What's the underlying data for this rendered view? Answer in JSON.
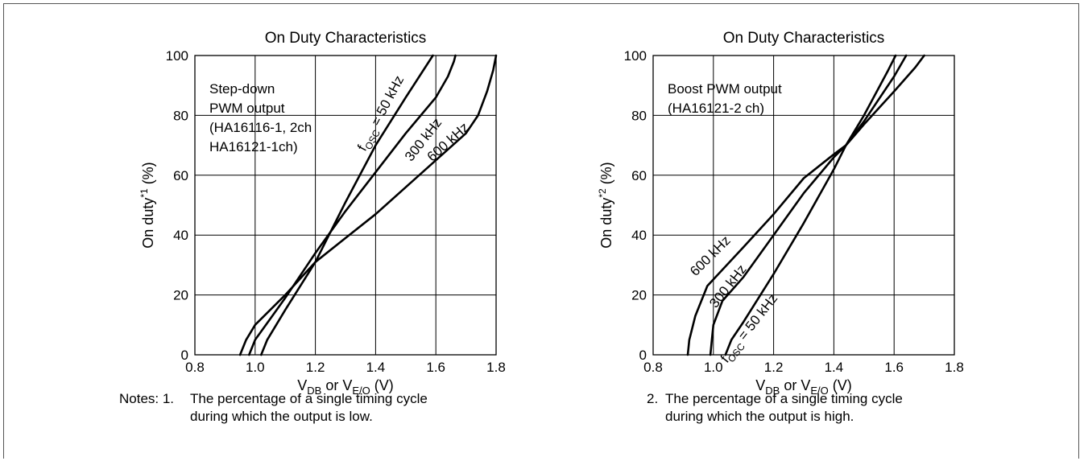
{
  "chart_data": [
    {
      "type": "line",
      "title": "On Duty Characteristics",
      "xlabel": {
        "main": "V",
        "sub1": "DB",
        "mid": " or V",
        "sub2": "E/O",
        "unit": " (V)"
      },
      "ylabel": {
        "main": "On duty",
        "sup": "*1",
        "unit": " (%)"
      },
      "xlim": [
        0.8,
        1.8
      ],
      "ylim": [
        0,
        100
      ],
      "xticks": [
        "0.8",
        "1.0",
        "1.2",
        "1.4",
        "1.6",
        "1.8"
      ],
      "yticks": [
        "0",
        "20",
        "40",
        "60",
        "80",
        "100"
      ],
      "grid": true,
      "annotation": [
        "Step-down",
        "PWM output",
        "(HA16116-1, 2ch",
        "HA16121-1ch)"
      ],
      "series": [
        {
          "name": "f_OSC = 50 kHz",
          "x": [
            1.02,
            1.04,
            1.1,
            1.2,
            1.3,
            1.4,
            1.5,
            1.59
          ],
          "y": [
            0,
            5,
            15,
            31,
            51,
            70,
            86,
            100
          ]
        },
        {
          "name": "300 kHz",
          "x": [
            0.98,
            1.0,
            1.05,
            1.1,
            1.2,
            1.3,
            1.4,
            1.5,
            1.6,
            1.64,
            1.66,
            1.665
          ],
          "y": [
            0,
            5,
            12,
            19,
            34,
            48,
            61,
            74,
            86,
            93,
            98,
            100
          ]
        },
        {
          "name": "600 kHz",
          "x": [
            0.95,
            0.97,
            1.0,
            1.1,
            1.2,
            1.3,
            1.4,
            1.5,
            1.6,
            1.7,
            1.74,
            1.77,
            1.79,
            1.8
          ],
          "y": [
            0,
            5,
            10,
            20,
            31,
            39,
            47,
            56,
            65,
            74,
            80,
            88,
            95,
            100
          ]
        }
      ],
      "curve_labels": [
        {
          "text": "f",
          "sub": "OSC",
          "tail": " = 50 kHz",
          "x": 1.43,
          "y": 80,
          "angle": -62
        },
        {
          "text": "300 kHz",
          "x": 1.57,
          "y": 71,
          "angle": -52
        },
        {
          "text": "600 kHz",
          "x": 1.65,
          "y": 70,
          "angle": -42
        }
      ]
    },
    {
      "type": "line",
      "title": "On Duty Characteristics",
      "xlabel": {
        "main": "V",
        "sub1": "DB",
        "mid": " or V",
        "sub2": "E/O",
        "unit": " (V)"
      },
      "ylabel": {
        "main": "On duty",
        "sup": "*2",
        "unit": " (%)"
      },
      "xlim": [
        0.8,
        1.8
      ],
      "ylim": [
        0,
        100
      ],
      "xticks": [
        "0.8",
        "1.0",
        "1.2",
        "1.4",
        "1.6",
        "1.8"
      ],
      "yticks": [
        "0",
        "20",
        "40",
        "60",
        "80",
        "100"
      ],
      "grid": true,
      "annotation": [
        "Boost PWM output",
        "(HA16121-2 ch)"
      ],
      "series": [
        {
          "name": "f_OSC = 50 kHz",
          "x": [
            1.04,
            1.06,
            1.1,
            1.2,
            1.3,
            1.4,
            1.44,
            1.5,
            1.6,
            1.67,
            1.7
          ],
          "y": [
            0,
            5,
            11,
            27,
            44,
            62,
            70,
            77,
            88,
            96,
            100
          ]
        },
        {
          "name": "300 kHz",
          "x": [
            0.99,
            0.995,
            1.0,
            1.03,
            1.1,
            1.2,
            1.3,
            1.4,
            1.44,
            1.5,
            1.6,
            1.64
          ],
          "y": [
            0,
            5,
            10,
            18,
            26,
            40,
            54,
            66,
            70,
            78,
            93,
            100
          ]
        },
        {
          "name": "600 kHz",
          "x": [
            0.915,
            0.92,
            0.94,
            0.98,
            1.1,
            1.2,
            1.3,
            1.4,
            1.44,
            1.5,
            1.58,
            1.605
          ],
          "y": [
            0,
            5,
            13,
            23,
            36,
            47,
            59,
            67,
            70,
            80,
            95,
            100
          ]
        }
      ],
      "curve_labels": [
        {
          "text": "600 kHz",
          "x": 1.0,
          "y": 32,
          "angle": -45
        },
        {
          "text": "300 kHz",
          "x": 1.06,
          "y": 22,
          "angle": -52
        },
        {
          "text": "f",
          "sub": "OSC",
          "tail": " = 50 kHz",
          "x": 1.13,
          "y": 8,
          "angle": -52
        }
      ]
    }
  ],
  "notes": {
    "left": {
      "prefix": "Notes: 1.",
      "line1": "The percentage of a single timing cycle",
      "line2": "during which the output is low."
    },
    "right": {
      "prefix": "2.",
      "line1": "The percentage of a single timing cycle",
      "line2": "during which the output is high."
    }
  }
}
